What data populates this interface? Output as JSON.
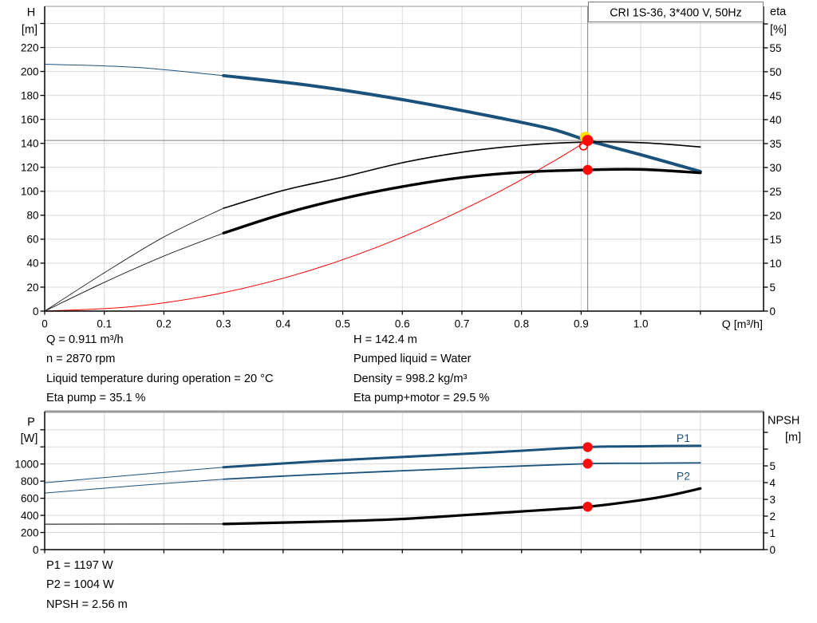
{
  "colors": {
    "curve_blue": "#1a527c",
    "curve_black": "#000000",
    "curve_red": "#ff0000",
    "marker_red": "#ff0a0a",
    "marker_yellow": "#ffdf00",
    "grid": "#d8d8d8",
    "crosshair": "#8a8a8a",
    "axis": "#000000",
    "top_border": "#9a9a9a",
    "box_border": "#7a7a7a",
    "label_blue": "#1a527c"
  },
  "info_top_left": [
    "Q = 0.911 m³/h",
    "n = 2870 rpm",
    "Liquid temperature during operation = 20 °C",
    "Eta pump = 35.1 %"
  ],
  "info_top_right": [
    "H = 142.4 m",
    "Pumped liquid = Water",
    "Density = 998.2 kg/m³",
    "Eta pump+motor = 29.5 %"
  ],
  "info_bottom": [
    "P1 = 1197 W",
    "P2 = 1004 W",
    "NPSH = 2.56 m"
  ],
  "chart_data": [
    {
      "type": "line",
      "title": "CRI 1S-36, 3*400 V, 50Hz",
      "x_axis": {
        "label": "Q [m³/h]",
        "range": [
          0,
          1.206
        ],
        "ticks": [
          {
            "v": 0,
            "l": "0"
          },
          {
            "v": 0.1,
            "l": "0.1"
          },
          {
            "v": 0.2,
            "l": "0.2"
          },
          {
            "v": 0.3,
            "l": "0.3"
          },
          {
            "v": 0.4,
            "l": "0.4"
          },
          {
            "v": 0.5,
            "l": "0.5"
          },
          {
            "v": 0.6,
            "l": "0.6"
          },
          {
            "v": 0.7,
            "l": "0.7"
          },
          {
            "v": 0.8,
            "l": "0.8"
          },
          {
            "v": 0.9,
            "l": "0.9"
          },
          {
            "v": 1.0,
            "l": "1.0"
          },
          {
            "v": 1.1,
            "l": ""
          }
        ]
      },
      "y_left": {
        "unit": [
          "H",
          "[m]"
        ],
        "range": [
          0,
          254.3
        ],
        "ticks": [
          {
            "v": 0,
            "l": "0"
          },
          {
            "v": 20,
            "l": "20"
          },
          {
            "v": 40,
            "l": "40"
          },
          {
            "v": 60,
            "l": "60"
          },
          {
            "v": 80,
            "l": "80"
          },
          {
            "v": 100,
            "l": "100"
          },
          {
            "v": 120,
            "l": "120"
          },
          {
            "v": 140,
            "l": "140"
          },
          {
            "v": 160,
            "l": "160"
          },
          {
            "v": 180,
            "l": "180"
          },
          {
            "v": 200,
            "l": "200"
          },
          {
            "v": 220,
            "l": "220"
          },
          {
            "v": 240,
            "l": ""
          }
        ]
      },
      "y_right": {
        "unit": [
          "eta",
          "[%]"
        ],
        "range": [
          0,
          63.66
        ],
        "ticks": [
          {
            "v": 0,
            "l": "0"
          },
          {
            "v": 5,
            "l": "5"
          },
          {
            "v": 10,
            "l": "10"
          },
          {
            "v": 15,
            "l": "15"
          },
          {
            "v": 20,
            "l": "20"
          },
          {
            "v": 25,
            "l": "25"
          },
          {
            "v": 30,
            "l": "30"
          },
          {
            "v": 35,
            "l": "35"
          },
          {
            "v": 40,
            "l": "40"
          },
          {
            "v": 45,
            "l": "45"
          },
          {
            "v": 50,
            "l": "50"
          },
          {
            "v": 55,
            "l": "55"
          },
          {
            "v": 60,
            "l": ""
          }
        ]
      },
      "series": [
        {
          "name": "system-curve",
          "axis": "left",
          "color": "red",
          "w_thin": 1,
          "points": [
            [
              0,
              0
            ],
            [
              0.15,
              3.9
            ],
            [
              0.3,
              15.4
            ],
            [
              0.45,
              34.7
            ],
            [
              0.6,
              61.8
            ],
            [
              0.75,
              96.5
            ],
            [
              0.85,
              124
            ],
            [
              0.911,
              142.4
            ]
          ]
        },
        {
          "name": "head-curve",
          "axis": "left",
          "color": "blue",
          "w_thin": 1,
          "w_bold": 4,
          "bold_from": 0.3,
          "points": [
            [
              0,
              206
            ],
            [
              0.15,
              203.5
            ],
            [
              0.3,
              196.5
            ],
            [
              0.45,
              188
            ],
            [
              0.6,
              176.5
            ],
            [
              0.75,
              162.5
            ],
            [
              0.85,
              152
            ],
            [
              0.911,
              142.4
            ],
            [
              1.0,
              130.5
            ],
            [
              1.1,
              116.5
            ]
          ]
        },
        {
          "name": "eta-pump-curve",
          "axis": "right",
          "color": "black",
          "w_thin": 0.8,
          "w_bold": 1.6,
          "bold_from": 0.3,
          "points": [
            [
              0,
              0
            ],
            [
              0.1,
              8
            ],
            [
              0.2,
              15.5
            ],
            [
              0.3,
              21.5
            ],
            [
              0.4,
              25.2
            ],
            [
              0.5,
              28
            ],
            [
              0.6,
              31
            ],
            [
              0.7,
              33.2
            ],
            [
              0.8,
              34.6
            ],
            [
              0.9,
              35.3
            ],
            [
              1.0,
              35.2
            ],
            [
              1.1,
              34.3
            ]
          ]
        },
        {
          "name": "eta-pump-motor-curve",
          "axis": "right",
          "color": "black",
          "w_thin": 0.8,
          "w_bold": 3.4,
          "bold_from": 0.3,
          "points": [
            [
              0,
              0
            ],
            [
              0.1,
              6
            ],
            [
              0.2,
              11.5
            ],
            [
              0.3,
              16.3
            ],
            [
              0.4,
              20.3
            ],
            [
              0.5,
              23.5
            ],
            [
              0.6,
              26
            ],
            [
              0.7,
              27.9
            ],
            [
              0.8,
              29
            ],
            [
              0.911,
              29.5
            ],
            [
              1.0,
              29.6
            ],
            [
              1.1,
              28.9
            ]
          ]
        }
      ],
      "crosshair": {
        "q": 0.911,
        "h": 142.4
      },
      "markers": [
        {
          "style": "duty-main",
          "axis": "left",
          "q": 0.911,
          "val": 142.4,
          "name": "duty-point-marker"
        },
        {
          "style": "ring",
          "axis": "left",
          "q": 0.904,
          "val": 137.8,
          "name": "rated-point-ring"
        },
        {
          "style": "dot",
          "axis": "right",
          "q": 0.911,
          "val": 29.5,
          "name": "eta-motor-duty-dot"
        }
      ]
    },
    {
      "type": "line",
      "title": "",
      "x_axis": {
        "label": "",
        "range": [
          0,
          1.206
        ],
        "ticks": [
          {
            "v": 0,
            "l": ""
          },
          {
            "v": 0.1,
            "l": ""
          },
          {
            "v": 0.2,
            "l": ""
          },
          {
            "v": 0.3,
            "l": ""
          },
          {
            "v": 0.4,
            "l": ""
          },
          {
            "v": 0.5,
            "l": ""
          },
          {
            "v": 0.6,
            "l": ""
          },
          {
            "v": 0.7,
            "l": ""
          },
          {
            "v": 0.8,
            "l": ""
          },
          {
            "v": 0.9,
            "l": ""
          },
          {
            "v": 1.0,
            "l": ""
          },
          {
            "v": 1.1,
            "l": ""
          }
        ]
      },
      "y_left": {
        "unit": [
          "P",
          "[W]"
        ],
        "range": [
          0,
          1612
        ],
        "ticks": [
          {
            "v": 0,
            "l": "0"
          },
          {
            "v": 200,
            "l": "200"
          },
          {
            "v": 400,
            "l": "400"
          },
          {
            "v": 600,
            "l": "600"
          },
          {
            "v": 800,
            "l": "800"
          },
          {
            "v": 1000,
            "l": "1000"
          },
          {
            "v": 1200,
            "l": ""
          },
          {
            "v": 1400,
            "l": ""
          }
        ]
      },
      "y_right": {
        "unit": [
          "NPSH",
          "[m]"
        ],
        "range": [
          0,
          8.24
        ],
        "ticks": [
          {
            "v": 0,
            "l": "0"
          },
          {
            "v": 1,
            "l": "1"
          },
          {
            "v": 2,
            "l": "2"
          },
          {
            "v": 3,
            "l": "3"
          },
          {
            "v": 4,
            "l": "4"
          },
          {
            "v": 5,
            "l": "5"
          },
          {
            "v": 6,
            "l": ""
          },
          {
            "v": 7,
            "l": ""
          }
        ]
      },
      "series": [
        {
          "name": "p1-curve",
          "axis": "left",
          "color": "blue",
          "w_thin": 1,
          "w_bold": 3,
          "bold_from": 0.3,
          "label": "P1",
          "label_pos": "above",
          "points": [
            [
              0,
              780
            ],
            [
              0.15,
              872
            ],
            [
              0.3,
              962
            ],
            [
              0.45,
              1028
            ],
            [
              0.6,
              1082
            ],
            [
              0.75,
              1136
            ],
            [
              0.911,
              1197
            ],
            [
              1.0,
              1207
            ],
            [
              1.1,
              1213
            ]
          ]
        },
        {
          "name": "p2-curve",
          "axis": "left",
          "color": "blue",
          "w_thin": 1,
          "w_bold": 1.8,
          "bold_from": 0.3,
          "label": "P2",
          "label_pos": "below",
          "points": [
            [
              0,
              660
            ],
            [
              0.15,
              745
            ],
            [
              0.3,
              822
            ],
            [
              0.45,
              876
            ],
            [
              0.6,
              921
            ],
            [
              0.75,
              963
            ],
            [
              0.911,
              1004
            ],
            [
              1.0,
              1009
            ],
            [
              1.1,
              1013
            ]
          ]
        },
        {
          "name": "npsh-curve",
          "axis": "right",
          "color": "black",
          "w_thin": 1,
          "w_bold": 3.2,
          "bold_from": 0.3,
          "points": [
            [
              0,
              1.52
            ],
            [
              0.3,
              1.53
            ],
            [
              0.5,
              1.7
            ],
            [
              0.6,
              1.83
            ],
            [
              0.7,
              2.05
            ],
            [
              0.8,
              2.28
            ],
            [
              0.911,
              2.56
            ],
            [
              1.0,
              2.95
            ],
            [
              1.05,
              3.25
            ],
            [
              1.1,
              3.65
            ]
          ]
        }
      ],
      "markers": [
        {
          "style": "dot",
          "axis": "left",
          "q": 0.911,
          "val": 1197,
          "name": "p1-duty-dot"
        },
        {
          "style": "dot",
          "axis": "left",
          "q": 0.911,
          "val": 1004,
          "name": "p2-duty-dot"
        },
        {
          "style": "dot",
          "axis": "right",
          "q": 0.911,
          "val": 2.56,
          "name": "npsh-duty-dot"
        }
      ]
    }
  ]
}
